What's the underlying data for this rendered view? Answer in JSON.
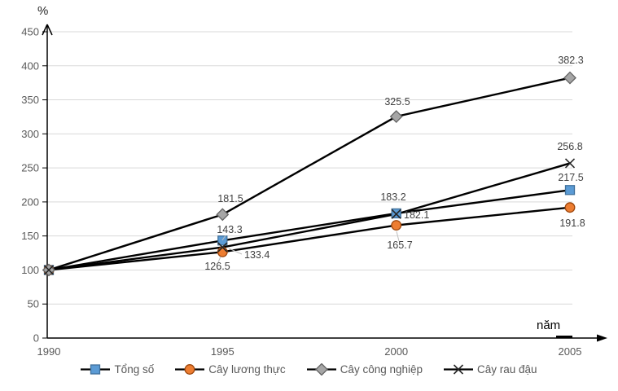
{
  "chart_data": {
    "type": "line",
    "title": "",
    "unit_label": "%",
    "x_axis_label": "năm",
    "categories": [
      "1990",
      "1995",
      "2000",
      "2005"
    ],
    "y_ticks": [
      0,
      50,
      100,
      150,
      200,
      250,
      300,
      350,
      400,
      450
    ],
    "ylim": [
      0,
      450
    ],
    "grid": true,
    "legend_position": "bottom",
    "series": [
      {
        "name": "Tổng số",
        "marker": "square",
        "fill": "#5B9BD5",
        "stroke": "#41719C",
        "values": [
          100,
          143.3,
          183.2,
          217.5
        ]
      },
      {
        "name": "Cây lương thực",
        "marker": "circle",
        "fill": "#ED7D31",
        "stroke": "#9E480E",
        "values": [
          100,
          126.5,
          165.7,
          191.8
        ]
      },
      {
        "name": "Cây công nghiệp",
        "marker": "diamond",
        "fill": "#A6A6A6",
        "stroke": "#636363",
        "values": [
          100,
          181.5,
          325.5,
          382.3
        ]
      },
      {
        "name": "Cây rau đậu",
        "marker": "x",
        "fill": "#262626",
        "stroke": "#262626",
        "values": [
          100,
          133.4,
          182.1,
          256.8
        ]
      }
    ],
    "colors": {
      "line": "#000000",
      "grid": "#D9D9D9",
      "axis": "#000000",
      "tick_text": "#595959",
      "data_label_text": "#404040",
      "leader": "#BFBFBF"
    }
  }
}
